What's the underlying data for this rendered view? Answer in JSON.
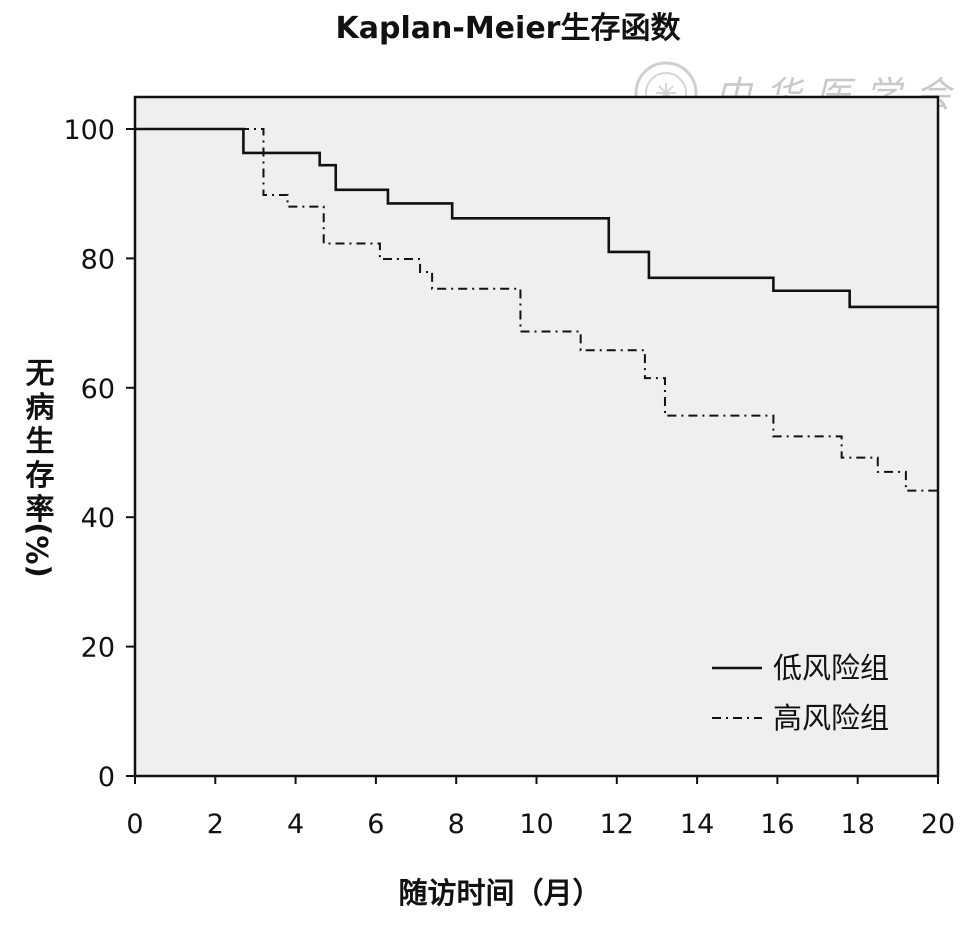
{
  "chart_data": {
    "type": "line",
    "step": true,
    "title": "Kaplan-Meier生存函数",
    "xlabel": "随访时间（月）",
    "ylabel_lines": [
      "无",
      "病",
      "生",
      "存",
      "率",
      "(%)"
    ],
    "xlim": [
      0,
      20
    ],
    "ylim": [
      0,
      100
    ],
    "xticks": [
      0,
      2,
      4,
      6,
      8,
      10,
      12,
      14,
      16,
      18,
      20
    ],
    "yticks": [
      0,
      20,
      40,
      60,
      80,
      100
    ],
    "grid": false,
    "legend_position": "bottom-right",
    "background": "#efefef",
    "series": [
      {
        "name": "低风险组",
        "style": "solid",
        "color": "#111111",
        "x": [
          0,
          2.7,
          4.6,
          5.0,
          6.3,
          7.9,
          11.8,
          12.8,
          15.9,
          17.8,
          20
        ],
        "y": [
          100,
          96.3,
          94.4,
          90.6,
          88.5,
          86.2,
          81.0,
          77.0,
          75.0,
          72.5,
          72.5
        ]
      },
      {
        "name": "高风险组",
        "style": "dash-dot",
        "color": "#111111",
        "x": [
          0,
          3.2,
          3.8,
          4.7,
          6.1,
          7.1,
          7.4,
          9.6,
          11.1,
          12.7,
          13.2,
          15.9,
          17.6,
          18.5,
          19.2,
          20
        ],
        "y": [
          100,
          89.8,
          88.0,
          82.3,
          79.9,
          77.9,
          75.3,
          68.7,
          65.8,
          61.5,
          55.7,
          52.5,
          49.2,
          47.0,
          44.1,
          44.1
        ]
      }
    ]
  },
  "watermark": {
    "text": "中华医学会",
    "icon": "society-seal-icon",
    "color": "#c9c9c9"
  }
}
